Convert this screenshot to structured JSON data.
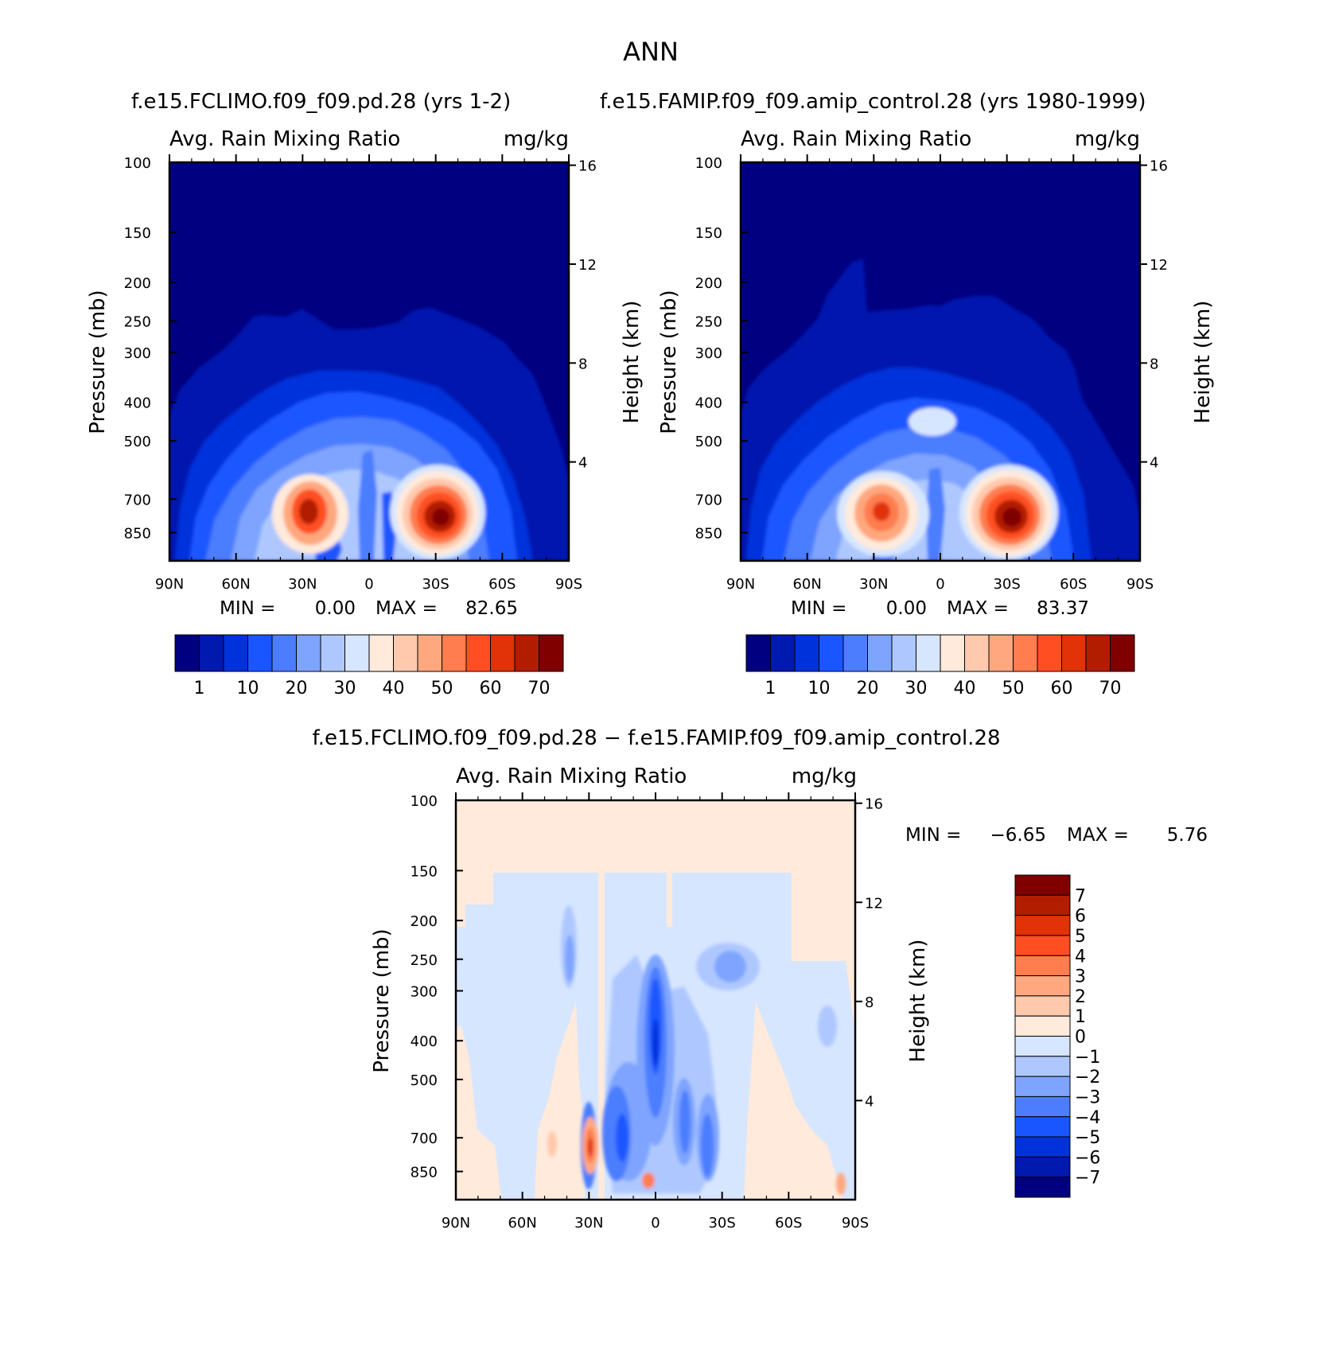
{
  "figure": {
    "title": "ANN",
    "colors": {
      "seq": [
        "#000080",
        "#0019ae",
        "#0032dc",
        "#1a56ff",
        "#4c7dff",
        "#7ea4ff",
        "#aec8ff",
        "#d7e6ff",
        "#ffeadb",
        "#ffc9ad",
        "#ffa87f",
        "#ff7d4f",
        "#ff4f22",
        "#e13208",
        "#b21d00",
        "#800000"
      ],
      "diff": [
        "#000080",
        "#0019ae",
        "#0032dc",
        "#1a56ff",
        "#4c7dff",
        "#7ea4ff",
        "#aec8ff",
        "#d7e6ff",
        "#ffeadb",
        "#ffc9ad",
        "#ffa87f",
        "#ff7d4f",
        "#ff4f22",
        "#e13208",
        "#b21d00",
        "#800000"
      ]
    }
  },
  "chart_data": [
    {
      "type": "contour",
      "title": "f.e15.FCLIMO.f09_f09.pd.28 (yrs 1-2)",
      "variable": "Avg. Rain Mixing Ratio",
      "units": "mg/kg",
      "xlabel": "",
      "ylabel": "Pressure (mb)",
      "ylabel_right": "Height (km)",
      "x_ticks": [
        "90N",
        "60N",
        "30N",
        "0",
        "30S",
        "60S",
        "90S"
      ],
      "y_ticks": [
        100,
        150,
        200,
        250,
        300,
        400,
        500,
        700,
        850
      ],
      "y_ticks_right": [
        16,
        12,
        8,
        4
      ],
      "stat_min_label": "MIN =",
      "stat_min": "0.00",
      "stat_max_label": "MAX =",
      "stat_max": "82.65",
      "colorbar_labels": [
        "1",
        "10",
        "20",
        "30",
        "40",
        "50",
        "60",
        "70"
      ],
      "maxima": [
        {
          "lat": 28,
          "p": 700,
          "value": 70
        },
        {
          "lat": -30,
          "p": 700,
          "value": 82.65
        }
      ]
    },
    {
      "type": "contour",
      "title": "f.e15.FAMIP.f09_f09.amip_control.28 (yrs 1980-1999)",
      "variable": "Avg. Rain Mixing Ratio",
      "units": "mg/kg",
      "xlabel": "",
      "ylabel": "Pressure (mb)",
      "ylabel_right": "Height (km)",
      "x_ticks": [
        "90N",
        "60N",
        "30N",
        "0",
        "30S",
        "60S",
        "90S"
      ],
      "y_ticks": [
        100,
        150,
        200,
        250,
        300,
        400,
        500,
        700,
        850
      ],
      "y_ticks_right": [
        16,
        12,
        8,
        4
      ],
      "stat_min_label": "MIN =",
      "stat_min": "0.00",
      "stat_max_label": "MAX =",
      "stat_max": "83.37",
      "colorbar_labels": [
        "1",
        "10",
        "20",
        "30",
        "40",
        "50",
        "60",
        "70"
      ],
      "maxima": [
        {
          "lat": 27,
          "p": 700,
          "value": 62
        },
        {
          "lat": -30,
          "p": 700,
          "value": 83.37
        }
      ]
    },
    {
      "type": "contour",
      "title": "f.e15.FCLIMO.f09_f09.pd.28 − f.e15.FAMIP.f09_f09.amip_control.28",
      "variable": "Avg. Rain Mixing Ratio",
      "units": "mg/kg",
      "xlabel": "",
      "ylabel": "Pressure (mb)",
      "ylabel_right": "Height (km)",
      "x_ticks": [
        "90N",
        "60N",
        "30N",
        "0",
        "30S",
        "60S",
        "90S"
      ],
      "y_ticks": [
        100,
        150,
        200,
        250,
        300,
        400,
        500,
        700,
        850
      ],
      "y_ticks_right": [
        16,
        12,
        8,
        4
      ],
      "stat_min_label": "MIN =",
      "stat_min": "−6.65",
      "stat_max_label": "MAX =",
      "stat_max": "5.76",
      "colorbar_labels": [
        "7",
        "6",
        "5",
        "4",
        "3",
        "2",
        "1",
        "0",
        "−1",
        "−2",
        "−3",
        "−4",
        "−5",
        "−6",
        "−7"
      ],
      "extremes": [
        {
          "lat": 0,
          "p": 400,
          "value": -6.65
        },
        {
          "lat": 30,
          "p": 700,
          "value": 5.76
        }
      ]
    }
  ]
}
